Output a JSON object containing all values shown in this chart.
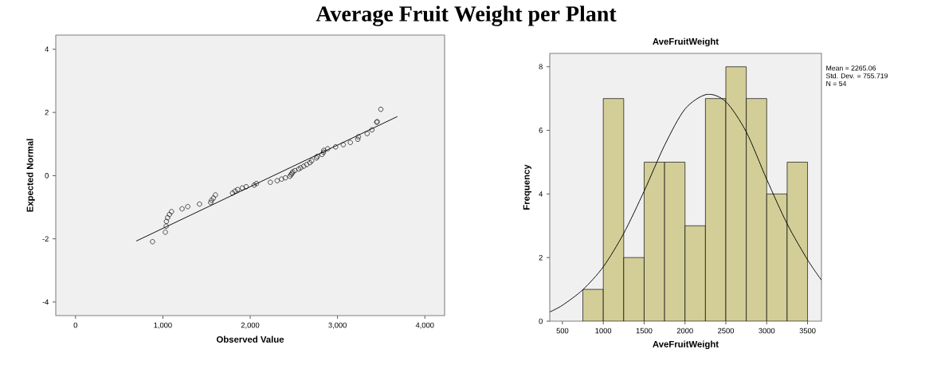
{
  "chart_data": [
    {
      "type": "scatter",
      "title": "Average Fruit Weight per Plant",
      "xlabel": "Observed Value",
      "ylabel": "Expected Normal",
      "xlim": [
        -226,
        4226
      ],
      "ylim": [
        -4.43,
        4.45
      ],
      "xticks": [
        0,
        {
          "value": 1000,
          "label": "1,000"
        },
        {
          "value": 2000,
          "label": "2,000"
        },
        {
          "value": 3000,
          "label": "3,000"
        },
        {
          "value": 4000,
          "label": "4,000"
        }
      ],
      "yticks": [
        -4,
        -2,
        0,
        2,
        4
      ],
      "series": [
        {
          "type": "scatter",
          "marker": "circle",
          "color": "#000000",
          "x": [
            882,
            1028,
            1038,
            1041,
            1055,
            1075,
            1099,
            1220,
            1285,
            1420,
            1548,
            1558,
            1579,
            1602,
            1798,
            1826,
            1856,
            1910,
            1954,
            2045,
            2072,
            2231,
            2309,
            2359,
            2403,
            2454,
            2468,
            2478,
            2488,
            2512,
            2556,
            2579,
            2613,
            2647,
            2684,
            2704,
            2759,
            2769,
            2823,
            2840,
            2843,
            2887,
            2978,
            3066,
            3147,
            3232,
            3239,
            3340,
            3394,
            3448,
            3455,
            3496
          ],
          "values": [
            -2.09,
            -1.79,
            -1.6,
            -1.45,
            -1.33,
            -1.23,
            -1.14,
            -1.05,
            -0.98,
            -0.9,
            -0.85,
            -0.78,
            -0.71,
            -0.61,
            -0.55,
            -0.49,
            -0.44,
            -0.39,
            -0.35,
            -0.3,
            -0.25,
            -0.21,
            -0.16,
            -0.11,
            -0.07,
            -0.02,
            0.03,
            0.07,
            0.12,
            0.16,
            0.21,
            0.25,
            0.3,
            0.35,
            0.41,
            0.47,
            0.56,
            0.61,
            0.67,
            0.74,
            0.8,
            0.85,
            0.91,
            0.98,
            1.05,
            1.15,
            1.23,
            1.33,
            1.45,
            1.69,
            1.71,
            2.1
          ]
        },
        {
          "type": "line",
          "marker": "none",
          "color": "#000000",
          "x": [
            696,
            3685
          ],
          "values": [
            -2.07,
            1.87
          ]
        }
      ]
    },
    {
      "type": "histogram",
      "title": "AveFruitWeight",
      "xlabel": "AveFruitWeight",
      "ylabel": "Frequency",
      "xlim": [
        345,
        3670
      ],
      "ylim": [
        0,
        8.42
      ],
      "xticks": [
        500,
        1000,
        1500,
        2000,
        2500,
        3000,
        3500
      ],
      "yticks": [
        0,
        2,
        4,
        6,
        8
      ],
      "bins": [
        750,
        1000,
        1250,
        1500,
        1750,
        2000,
        2250,
        2500,
        2750,
        3000,
        3250,
        3500
      ],
      "values": [
        1,
        7,
        2,
        5,
        5,
        3,
        7,
        8,
        7,
        4,
        5
      ],
      "color": "#d3ce97",
      "annotations": [
        "Mean = 2265.06",
        "Std. Dev. = 755.719",
        "N = 54"
      ],
      "series": [
        {
          "type": "line",
          "marker": "none",
          "color": "#000000",
          "x": [
            345,
            500,
            750,
            1000,
            1250,
            1500,
            1750,
            2000,
            2265,
            2500,
            2750,
            3000,
            3250,
            3500,
            3670
          ],
          "values": [
            0.29,
            0.5,
            0.99,
            1.71,
            2.76,
            4.09,
            5.53,
            6.67,
            7.13,
            6.9,
            5.95,
            4.46,
            3.06,
            1.93,
            1.29
          ]
        }
      ]
    }
  ]
}
